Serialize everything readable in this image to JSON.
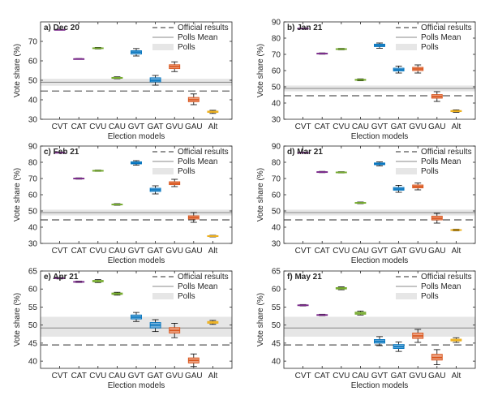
{
  "figure": {
    "legend": {
      "official": "Official results",
      "mean": "Polls Mean",
      "polls": "Polls"
    },
    "colors": {
      "official_line": "#555555",
      "mean_line": "#888888",
      "polls_band": "#e6e6e6",
      "axis": "#262626"
    }
  },
  "chart_data": [
    {
      "type": "box",
      "panel_label": "a) Dec 20",
      "xlabel": "Election models",
      "ylabel": "Vote share (%)",
      "ylim": [
        30,
        80
      ],
      "yticks": [
        30,
        40,
        50,
        60,
        70
      ],
      "categories": [
        "CVT",
        "CAT",
        "CVU",
        "CAU",
        "GVT",
        "GAT",
        "GVU",
        "GAU",
        "Alt"
      ],
      "colors": [
        "#7e2f8e",
        "#7e2f8e",
        "#77ac30",
        "#77ac30",
        "#0072bd",
        "#0072bd",
        "#d95319",
        "#d95319",
        "#edb120"
      ],
      "boxes": [
        {
          "median": 76.0,
          "q1": 75.9,
          "q3": 76.1,
          "whisker_low": 75.8,
          "whisker_high": 76.2
        },
        {
          "median": 61.0,
          "q1": 60.9,
          "q3": 61.1,
          "whisker_low": 60.8,
          "whisker_high": 61.2
        },
        {
          "median": 66.5,
          "q1": 66.3,
          "q3": 66.7,
          "whisker_low": 66.1,
          "whisker_high": 66.9
        },
        {
          "median": 51.2,
          "q1": 51.0,
          "q3": 51.5,
          "whisker_low": 50.8,
          "whisker_high": 51.8
        },
        {
          "median": 64.5,
          "q1": 63.5,
          "q3": 65.2,
          "whisker_low": 62.5,
          "whisker_high": 66.3
        },
        {
          "median": 50.0,
          "q1": 49.2,
          "q3": 51.3,
          "whisker_low": 47.5,
          "whisker_high": 52.5
        },
        {
          "median": 57.0,
          "q1": 56.0,
          "q3": 58.0,
          "whisker_low": 54.5,
          "whisker_high": 59.5
        },
        {
          "median": 40.0,
          "q1": 39.0,
          "q3": 41.2,
          "whisker_low": 37.5,
          "whisker_high": 43.0
        },
        {
          "median": 33.8,
          "q1": 33.5,
          "q3": 34.2,
          "whisker_low": 33.0,
          "whisker_high": 34.6
        }
      ],
      "official_result": 44.5,
      "polls_mean": 49.0,
      "polls_range": [
        47.2,
        50.8
      ]
    },
    {
      "type": "box",
      "panel_label": "b) Jan 21",
      "xlabel": "Election models",
      "ylabel": "Vote share (%)",
      "ylim": [
        30,
        90
      ],
      "yticks": [
        30,
        40,
        50,
        60,
        70,
        80,
        90
      ],
      "categories": [
        "CVT",
        "CAT",
        "CVU",
        "CAU",
        "GVT",
        "GAT",
        "GVU",
        "GAU",
        "Alt"
      ],
      "colors": [
        "#7e2f8e",
        "#7e2f8e",
        "#77ac30",
        "#77ac30",
        "#0072bd",
        "#0072bd",
        "#d95319",
        "#d95319",
        "#edb120"
      ],
      "boxes": [
        {
          "median": 86.0,
          "q1": 85.9,
          "q3": 86.1,
          "whisker_low": 85.8,
          "whisker_high": 86.2
        },
        {
          "median": 70.5,
          "q1": 70.3,
          "q3": 70.7,
          "whisker_low": 70.1,
          "whisker_high": 70.9
        },
        {
          "median": 73.2,
          "q1": 73.0,
          "q3": 73.5,
          "whisker_low": 72.8,
          "whisker_high": 73.7
        },
        {
          "median": 54.3,
          "q1": 54.0,
          "q3": 54.6,
          "whisker_low": 53.7,
          "whisker_high": 54.9
        },
        {
          "median": 75.5,
          "q1": 74.8,
          "q3": 76.3,
          "whisker_low": 73.8,
          "whisker_high": 77.0
        },
        {
          "median": 60.5,
          "q1": 59.8,
          "q3": 61.5,
          "whisker_low": 58.5,
          "whisker_high": 62.8
        },
        {
          "median": 61.0,
          "q1": 60.0,
          "q3": 62.0,
          "whisker_low": 58.5,
          "whisker_high": 63.5
        },
        {
          "median": 44.0,
          "q1": 43.0,
          "q3": 45.2,
          "whisker_low": 41.0,
          "whisker_high": 47.0
        },
        {
          "median": 35.0,
          "q1": 34.7,
          "q3": 35.4,
          "whisker_low": 34.3,
          "whisker_high": 35.8
        }
      ],
      "official_result": 44.5,
      "polls_mean": 49.0,
      "polls_range": [
        47.2,
        50.8
      ]
    },
    {
      "type": "box",
      "panel_label": "c) Feb 21",
      "xlabel": "Election models",
      "ylabel": "Vote share (%)",
      "ylim": [
        30,
        90
      ],
      "yticks": [
        30,
        40,
        50,
        60,
        70,
        80,
        90
      ],
      "categories": [
        "CVT",
        "CAT",
        "CVU",
        "CAU",
        "GVT",
        "GAT",
        "GVU",
        "GAU",
        "Alt"
      ],
      "colors": [
        "#7e2f8e",
        "#7e2f8e",
        "#77ac30",
        "#77ac30",
        "#0072bd",
        "#0072bd",
        "#d95319",
        "#d95319",
        "#edb120"
      ],
      "boxes": [
        {
          "median": 86.0,
          "q1": 85.9,
          "q3": 86.1,
          "whisker_low": 85.8,
          "whisker_high": 86.2
        },
        {
          "median": 70.0,
          "q1": 69.8,
          "q3": 70.2,
          "whisker_low": 69.6,
          "whisker_high": 70.4
        },
        {
          "median": 74.8,
          "q1": 74.6,
          "q3": 75.0,
          "whisker_low": 74.4,
          "whisker_high": 75.2
        },
        {
          "median": 54.0,
          "q1": 53.8,
          "q3": 54.2,
          "whisker_low": 53.5,
          "whisker_high": 54.5
        },
        {
          "median": 79.5,
          "q1": 79.0,
          "q3": 80.3,
          "whisker_low": 78.2,
          "whisker_high": 81.0
        },
        {
          "median": 63.0,
          "q1": 62.0,
          "q3": 64.0,
          "whisker_low": 60.5,
          "whisker_high": 65.5
        },
        {
          "median": 67.0,
          "q1": 66.2,
          "q3": 68.0,
          "whisker_low": 65.0,
          "whisker_high": 69.5
        },
        {
          "median": 46.0,
          "q1": 45.0,
          "q3": 47.0,
          "whisker_low": 43.0,
          "whisker_high": 49.0
        },
        {
          "median": 34.5,
          "q1": 34.2,
          "q3": 34.8,
          "whisker_low": 34.0,
          "whisker_high": 35.0
        }
      ],
      "official_result": 44.5,
      "polls_mean": 49.0,
      "polls_range": [
        47.2,
        50.8
      ]
    },
    {
      "type": "box",
      "panel_label": "d) Mar 21",
      "xlabel": "Election models",
      "ylabel": "Vote share (%)",
      "ylim": [
        30,
        90
      ],
      "yticks": [
        30,
        40,
        50,
        60,
        70,
        80,
        90
      ],
      "categories": [
        "CVT",
        "CAT",
        "CVU",
        "CAU",
        "GVT",
        "GAT",
        "GVU",
        "GAU",
        "Alt"
      ],
      "colors": [
        "#7e2f8e",
        "#7e2f8e",
        "#77ac30",
        "#77ac30",
        "#0072bd",
        "#0072bd",
        "#d95319",
        "#d95319",
        "#edb120"
      ],
      "boxes": [
        {
          "median": 86.0,
          "q1": 85.9,
          "q3": 86.1,
          "whisker_low": 85.8,
          "whisker_high": 86.2
        },
        {
          "median": 74.0,
          "q1": 73.8,
          "q3": 74.2,
          "whisker_low": 73.6,
          "whisker_high": 74.4
        },
        {
          "median": 73.8,
          "q1": 73.6,
          "q3": 74.0,
          "whisker_low": 73.4,
          "whisker_high": 74.2
        },
        {
          "median": 55.0,
          "q1": 54.8,
          "q3": 55.2,
          "whisker_low": 54.5,
          "whisker_high": 55.5
        },
        {
          "median": 79.0,
          "q1": 78.5,
          "q3": 79.6,
          "whisker_low": 77.8,
          "whisker_high": 80.2
        },
        {
          "median": 63.5,
          "q1": 62.8,
          "q3": 64.5,
          "whisker_low": 61.5,
          "whisker_high": 65.8
        },
        {
          "median": 65.0,
          "q1": 64.2,
          "q3": 66.0,
          "whisker_low": 63.0,
          "whisker_high": 67.2
        },
        {
          "median": 45.5,
          "q1": 44.5,
          "q3": 46.8,
          "whisker_low": 42.5,
          "whisker_high": 48.5
        },
        {
          "median": 38.2,
          "q1": 38.0,
          "q3": 38.5,
          "whisker_low": 37.7,
          "whisker_high": 38.8
        }
      ],
      "official_result": 44.5,
      "polls_mean": 49.0,
      "polls_range": [
        47.2,
        50.8
      ]
    },
    {
      "type": "box",
      "panel_label": "e) Apr 21",
      "xlabel": "Election models",
      "ylabel": "Vote share (%)",
      "ylim": [
        38,
        65
      ],
      "yticks": [
        40,
        45,
        50,
        55,
        60,
        65
      ],
      "categories": [
        "CVT",
        "CAT",
        "CVU",
        "CAU",
        "GVT",
        "GAT",
        "GVU",
        "GAU",
        "Alt"
      ],
      "colors": [
        "#7e2f8e",
        "#7e2f8e",
        "#77ac30",
        "#77ac30",
        "#0072bd",
        "#0072bd",
        "#d95319",
        "#d95319",
        "#edb120"
      ],
      "boxes": [
        {
          "median": 63.0,
          "q1": 62.9,
          "q3": 63.1,
          "whisker_low": 62.8,
          "whisker_high": 63.2
        },
        {
          "median": 62.0,
          "q1": 61.9,
          "q3": 62.1,
          "whisker_low": 61.8,
          "whisker_high": 62.2
        },
        {
          "median": 62.2,
          "q1": 62.0,
          "q3": 62.4,
          "whisker_low": 61.8,
          "whisker_high": 62.6
        },
        {
          "median": 58.7,
          "q1": 58.5,
          "q3": 58.9,
          "whisker_low": 58.3,
          "whisker_high": 59.1
        },
        {
          "median": 52.2,
          "q1": 51.7,
          "q3": 52.8,
          "whisker_low": 51.0,
          "whisker_high": 53.5
        },
        {
          "median": 50.0,
          "q1": 49.2,
          "q3": 50.7,
          "whisker_low": 48.2,
          "whisker_high": 51.5
        },
        {
          "median": 48.5,
          "q1": 47.8,
          "q3": 49.3,
          "whisker_low": 46.5,
          "whisker_high": 50.5
        },
        {
          "median": 40.2,
          "q1": 39.5,
          "q3": 40.9,
          "whisker_low": 38.5,
          "whisker_high": 42.0
        },
        {
          "median": 50.8,
          "q1": 50.5,
          "q3": 51.0,
          "whisker_low": 50.2,
          "whisker_high": 51.3
        }
      ],
      "official_result": 44.5,
      "polls_mean": 49.2,
      "polls_range": [
        46.8,
        52.3
      ]
    },
    {
      "type": "box",
      "panel_label": "f) May 21",
      "xlabel": "Election models",
      "ylabel": "Vote share (%)",
      "ylim": [
        38,
        65
      ],
      "yticks": [
        40,
        45,
        50,
        55,
        60,
        65
      ],
      "categories": [
        "CVT",
        "CAT",
        "CVU",
        "CAU",
        "GVT",
        "GAT",
        "GVU",
        "GAU",
        "Alt"
      ],
      "colors": [
        "#7e2f8e",
        "#7e2f8e",
        "#77ac30",
        "#77ac30",
        "#0072bd",
        "#0072bd",
        "#d95319",
        "#d95319",
        "#edb120"
      ],
      "boxes": [
        {
          "median": 55.5,
          "q1": 55.4,
          "q3": 55.6,
          "whisker_low": 55.3,
          "whisker_high": 55.7
        },
        {
          "median": 52.8,
          "q1": 52.7,
          "q3": 52.9,
          "whisker_low": 52.6,
          "whisker_high": 53.0
        },
        {
          "median": 60.2,
          "q1": 60.0,
          "q3": 60.4,
          "whisker_low": 59.8,
          "whisker_high": 60.6
        },
        {
          "median": 53.3,
          "q1": 53.0,
          "q3": 53.6,
          "whisker_low": 52.8,
          "whisker_high": 53.9
        },
        {
          "median": 45.5,
          "q1": 45.0,
          "q3": 46.0,
          "whisker_low": 44.3,
          "whisker_high": 46.8
        },
        {
          "median": 44.0,
          "q1": 43.5,
          "q3": 44.6,
          "whisker_low": 42.7,
          "whisker_high": 45.3
        },
        {
          "median": 47.0,
          "q1": 46.3,
          "q3": 47.8,
          "whisker_low": 45.2,
          "whisker_high": 48.8
        },
        {
          "median": 41.0,
          "q1": 40.3,
          "q3": 41.9,
          "whisker_low": 39.0,
          "whisker_high": 43.2
        },
        {
          "median": 45.8,
          "q1": 45.6,
          "q3": 46.1,
          "whisker_low": 45.2,
          "whisker_high": 46.5
        }
      ],
      "official_result": 44.5,
      "polls_mean": 49.2,
      "polls_range": [
        46.8,
        52.3
      ]
    }
  ]
}
